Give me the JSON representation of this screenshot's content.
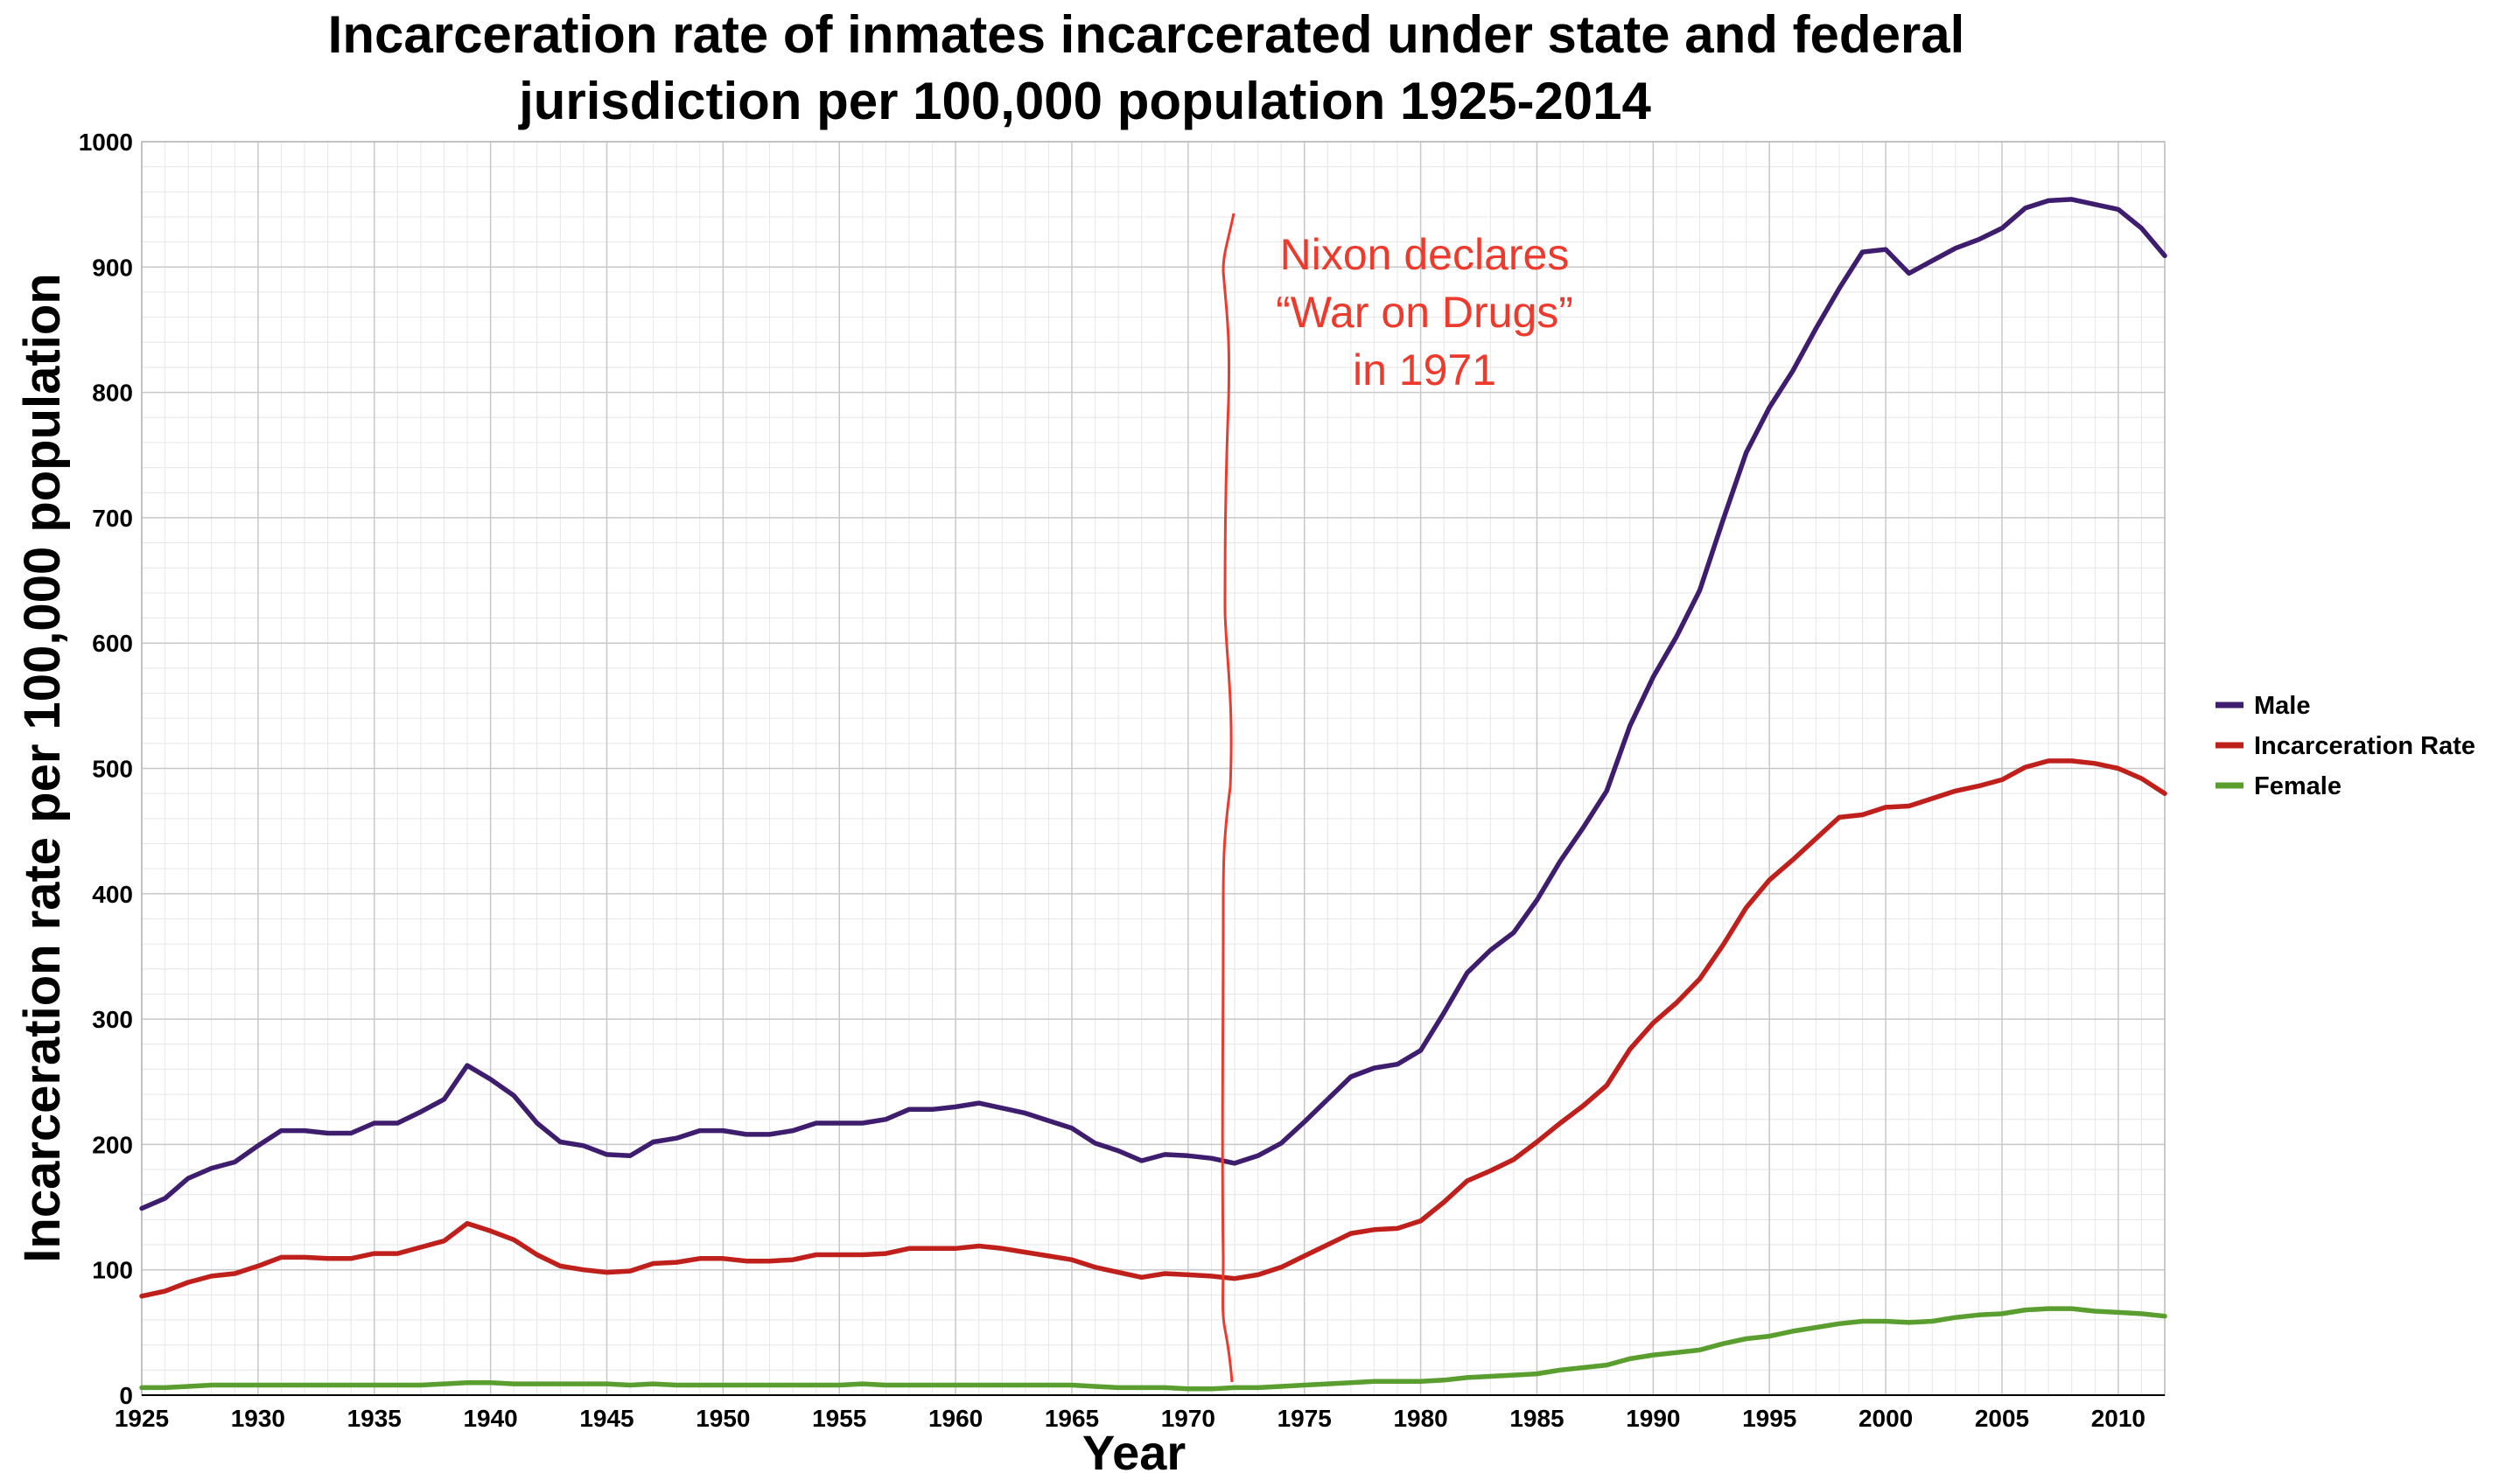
{
  "chart_data": {
    "type": "line",
    "title_lines": [
      "Incarceration rate of inmates incarcerated under state and federal",
      "jurisdiction per 100,000 population 1925-2014"
    ],
    "xlabel": "Year",
    "ylabel": "Incarceration rate per 100,000 population",
    "xlim": [
      1925,
      2012
    ],
    "ylim": [
      0,
      1000
    ],
    "x_ticks": [
      1925,
      1930,
      1935,
      1940,
      1945,
      1950,
      1955,
      1960,
      1965,
      1970,
      1975,
      1980,
      1985,
      1990,
      1995,
      2000,
      2005,
      2010
    ],
    "y_ticks": [
      0,
      100,
      200,
      300,
      400,
      500,
      600,
      700,
      800,
      900,
      1000
    ],
    "grid": true,
    "legend_position": "right",
    "series": [
      {
        "name": "Male",
        "color": "#3f1d6e",
        "points": [
          [
            1925,
            149
          ],
          [
            1926,
            157
          ],
          [
            1927,
            173
          ],
          [
            1928,
            181
          ],
          [
            1929,
            186
          ],
          [
            1930,
            199
          ],
          [
            1931,
            211
          ],
          [
            1932,
            211
          ],
          [
            1933,
            209
          ],
          [
            1934,
            209
          ],
          [
            1935,
            217
          ],
          [
            1936,
            217
          ],
          [
            1937,
            226
          ],
          [
            1938,
            236
          ],
          [
            1939,
            263
          ],
          [
            1940,
            252
          ],
          [
            1941,
            239
          ],
          [
            1942,
            217
          ],
          [
            1943,
            202
          ],
          [
            1944,
            199
          ],
          [
            1945,
            192
          ],
          [
            1946,
            191
          ],
          [
            1947,
            202
          ],
          [
            1948,
            205
          ],
          [
            1949,
            211
          ],
          [
            1950,
            211
          ],
          [
            1951,
            208
          ],
          [
            1952,
            208
          ],
          [
            1953,
            211
          ],
          [
            1954,
            217
          ],
          [
            1955,
            217
          ],
          [
            1956,
            217
          ],
          [
            1957,
            220
          ],
          [
            1958,
            228
          ],
          [
            1959,
            228
          ],
          [
            1960,
            230
          ],
          [
            1961,
            233
          ],
          [
            1962,
            229
          ],
          [
            1963,
            225
          ],
          [
            1964,
            219
          ],
          [
            1965,
            213
          ],
          [
            1966,
            201
          ],
          [
            1967,
            195
          ],
          [
            1968,
            187
          ],
          [
            1969,
            192
          ],
          [
            1970,
            191
          ],
          [
            1971,
            189
          ],
          [
            1972,
            185
          ],
          [
            1973,
            191
          ],
          [
            1974,
            201
          ],
          [
            1975,
            218
          ],
          [
            1976,
            236
          ],
          [
            1977,
            254
          ],
          [
            1978,
            261
          ],
          [
            1979,
            264
          ],
          [
            1980,
            275
          ],
          [
            1981,
            305
          ],
          [
            1982,
            337
          ],
          [
            1983,
            355
          ],
          [
            1984,
            369
          ],
          [
            1985,
            395
          ],
          [
            1986,
            426
          ],
          [
            1987,
            453
          ],
          [
            1988,
            482
          ],
          [
            1989,
            534
          ],
          [
            1990,
            573
          ],
          [
            1991,
            605
          ],
          [
            1992,
            642
          ],
          [
            1993,
            698
          ],
          [
            1994,
            752
          ],
          [
            1995,
            788
          ],
          [
            1996,
            817
          ],
          [
            1997,
            851
          ],
          [
            1998,
            883
          ],
          [
            1999,
            912
          ],
          [
            2000,
            914
          ],
          [
            2001,
            895
          ],
          [
            2002,
            905
          ],
          [
            2003,
            915
          ],
          [
            2004,
            922
          ],
          [
            2005,
            931
          ],
          [
            2006,
            947
          ],
          [
            2007,
            953
          ],
          [
            2008,
            954
          ],
          [
            2009,
            950
          ],
          [
            2010,
            946
          ],
          [
            2011,
            931
          ],
          [
            2012,
            909
          ]
        ]
      },
      {
        "name": "Incarceration Rate",
        "color": "#c0201c",
        "points": [
          [
            1925,
            79
          ],
          [
            1926,
            83
          ],
          [
            1927,
            90
          ],
          [
            1928,
            95
          ],
          [
            1929,
            97
          ],
          [
            1930,
            103
          ],
          [
            1931,
            110
          ],
          [
            1932,
            110
          ],
          [
            1933,
            109
          ],
          [
            1934,
            109
          ],
          [
            1935,
            113
          ],
          [
            1936,
            113
          ],
          [
            1937,
            118
          ],
          [
            1938,
            123
          ],
          [
            1939,
            137
          ],
          [
            1940,
            131
          ],
          [
            1941,
            124
          ],
          [
            1942,
            112
          ],
          [
            1943,
            103
          ],
          [
            1944,
            100
          ],
          [
            1945,
            98
          ],
          [
            1946,
            99
          ],
          [
            1947,
            105
          ],
          [
            1948,
            106
          ],
          [
            1949,
            109
          ],
          [
            1950,
            109
          ],
          [
            1951,
            107
          ],
          [
            1952,
            107
          ],
          [
            1953,
            108
          ],
          [
            1954,
            112
          ],
          [
            1955,
            112
          ],
          [
            1956,
            112
          ],
          [
            1957,
            113
          ],
          [
            1958,
            117
          ],
          [
            1959,
            117
          ],
          [
            1960,
            117
          ],
          [
            1961,
            119
          ],
          [
            1962,
            117
          ],
          [
            1963,
            114
          ],
          [
            1964,
            111
          ],
          [
            1965,
            108
          ],
          [
            1966,
            102
          ],
          [
            1967,
            98
          ],
          [
            1968,
            94
          ],
          [
            1969,
            97
          ],
          [
            1970,
            96
          ],
          [
            1971,
            95
          ],
          [
            1972,
            93
          ],
          [
            1973,
            96
          ],
          [
            1974,
            102
          ],
          [
            1975,
            111
          ],
          [
            1976,
            120
          ],
          [
            1977,
            129
          ],
          [
            1978,
            132
          ],
          [
            1979,
            133
          ],
          [
            1980,
            139
          ],
          [
            1981,
            154
          ],
          [
            1982,
            171
          ],
          [
            1983,
            179
          ],
          [
            1984,
            188
          ],
          [
            1985,
            202
          ],
          [
            1986,
            217
          ],
          [
            1987,
            231
          ],
          [
            1988,
            247
          ],
          [
            1989,
            276
          ],
          [
            1990,
            297
          ],
          [
            1991,
            313
          ],
          [
            1992,
            332
          ],
          [
            1993,
            359
          ],
          [
            1994,
            389
          ],
          [
            1995,
            411
          ],
          [
            1996,
            427
          ],
          [
            1997,
            444
          ],
          [
            1998,
            461
          ],
          [
            1999,
            463
          ],
          [
            2000,
            469
          ],
          [
            2001,
            470
          ],
          [
            2002,
            476
          ],
          [
            2003,
            482
          ],
          [
            2004,
            486
          ],
          [
            2005,
            491
          ],
          [
            2006,
            501
          ],
          [
            2007,
            506
          ],
          [
            2008,
            506
          ],
          [
            2009,
            504
          ],
          [
            2010,
            500
          ],
          [
            2011,
            492
          ],
          [
            2012,
            480
          ]
        ]
      },
      {
        "name": "Female",
        "color": "#5a9e2f",
        "points": [
          [
            1925,
            6
          ],
          [
            1926,
            6
          ],
          [
            1927,
            7
          ],
          [
            1928,
            8
          ],
          [
            1929,
            8
          ],
          [
            1930,
            8
          ],
          [
            1931,
            8
          ],
          [
            1932,
            8
          ],
          [
            1933,
            8
          ],
          [
            1934,
            8
          ],
          [
            1935,
            8
          ],
          [
            1936,
            8
          ],
          [
            1937,
            8
          ],
          [
            1938,
            9
          ],
          [
            1939,
            10
          ],
          [
            1940,
            10
          ],
          [
            1941,
            9
          ],
          [
            1942,
            9
          ],
          [
            1943,
            9
          ],
          [
            1944,
            9
          ],
          [
            1945,
            9
          ],
          [
            1946,
            8
          ],
          [
            1947,
            9
          ],
          [
            1948,
            8
          ],
          [
            1949,
            8
          ],
          [
            1950,
            8
          ],
          [
            1951,
            8
          ],
          [
            1952,
            8
          ],
          [
            1953,
            8
          ],
          [
            1954,
            8
          ],
          [
            1955,
            8
          ],
          [
            1956,
            9
          ],
          [
            1957,
            8
          ],
          [
            1958,
            8
          ],
          [
            1959,
            8
          ],
          [
            1960,
            8
          ],
          [
            1961,
            8
          ],
          [
            1962,
            8
          ],
          [
            1963,
            8
          ],
          [
            1964,
            8
          ],
          [
            1965,
            8
          ],
          [
            1966,
            7
          ],
          [
            1967,
            6
          ],
          [
            1968,
            6
          ],
          [
            1969,
            6
          ],
          [
            1970,
            5
          ],
          [
            1971,
            5
          ],
          [
            1972,
            6
          ],
          [
            1973,
            6
          ],
          [
            1974,
            7
          ],
          [
            1975,
            8
          ],
          [
            1976,
            9
          ],
          [
            1977,
            10
          ],
          [
            1978,
            11
          ],
          [
            1979,
            11
          ],
          [
            1980,
            11
          ],
          [
            1981,
            12
          ],
          [
            1982,
            14
          ],
          [
            1983,
            15
          ],
          [
            1984,
            16
          ],
          [
            1985,
            17
          ],
          [
            1986,
            20
          ],
          [
            1987,
            22
          ],
          [
            1988,
            24
          ],
          [
            1989,
            29
          ],
          [
            1990,
            32
          ],
          [
            1991,
            34
          ],
          [
            1992,
            36
          ],
          [
            1993,
            41
          ],
          [
            1994,
            45
          ],
          [
            1995,
            47
          ],
          [
            1996,
            51
          ],
          [
            1997,
            54
          ],
          [
            1998,
            57
          ],
          [
            1999,
            59
          ],
          [
            2000,
            59
          ],
          [
            2001,
            58
          ],
          [
            2002,
            59
          ],
          [
            2003,
            62
          ],
          [
            2004,
            64
          ],
          [
            2005,
            65
          ],
          [
            2006,
            68
          ],
          [
            2007,
            69
          ],
          [
            2008,
            69
          ],
          [
            2009,
            67
          ],
          [
            2010,
            66
          ],
          [
            2011,
            65
          ],
          [
            2012,
            63
          ]
        ]
      }
    ],
    "annotation": {
      "lines": [
        "Nixon declares",
        "“War on Drugs”",
        "in 1971"
      ],
      "color": "#ee3a2c"
    }
  },
  "colors": {
    "grid_major": "#c8c8c8",
    "grid_minor": "#e6e6e6",
    "axis": "#000000",
    "annotation": "#ee3a2c"
  }
}
